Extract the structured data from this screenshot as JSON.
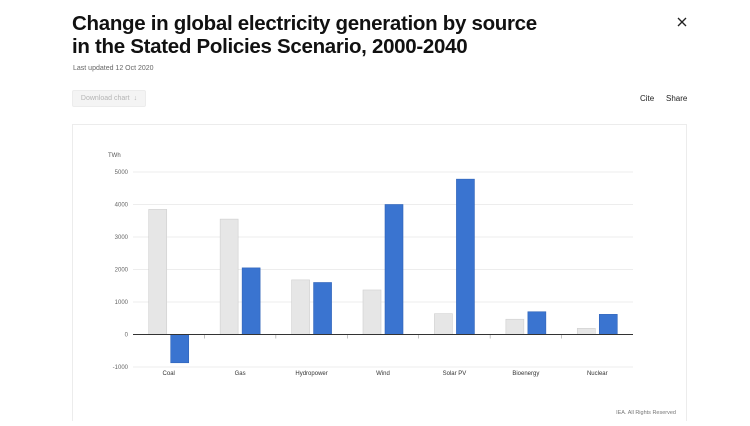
{
  "header": {
    "title": "Change in global electricity generation by source\nin the Stated Policies Scenario, 2000-2040",
    "last_updated": "Last updated 12 Oct 2020",
    "close_icon": "close-icon"
  },
  "toolbar": {
    "download_label": "Download chart",
    "download_icon": "download-arrow-icon",
    "cite_label": "Cite",
    "share_label": "Share"
  },
  "footer": {
    "copyright": "IEA. All Rights Reserved"
  },
  "colors": {
    "series_2000_2019": "#e6e6e6",
    "series_2019_2040": "#3a74d0",
    "grid": "#ededed",
    "axis": "#333333"
  },
  "chart_data": {
    "type": "bar",
    "ylabel": "TWh",
    "xlabel": "",
    "ylim": [
      -1000,
      5000
    ],
    "yticks": [
      5000,
      4000,
      3000,
      2000,
      1000,
      0,
      -1000
    ],
    "categories": [
      "Coal",
      "Gas",
      "Hydropower",
      "Wind",
      "Solar PV",
      "Bioenergy",
      "Nuclear"
    ],
    "series": [
      {
        "values": [
          3850,
          3550,
          1680,
          1370,
          640,
          470,
          190
        ]
      },
      {
        "values": [
          -870,
          2050,
          1600,
          4000,
          4780,
          700,
          620
        ]
      }
    ],
    "grid": true,
    "legend": "none"
  }
}
